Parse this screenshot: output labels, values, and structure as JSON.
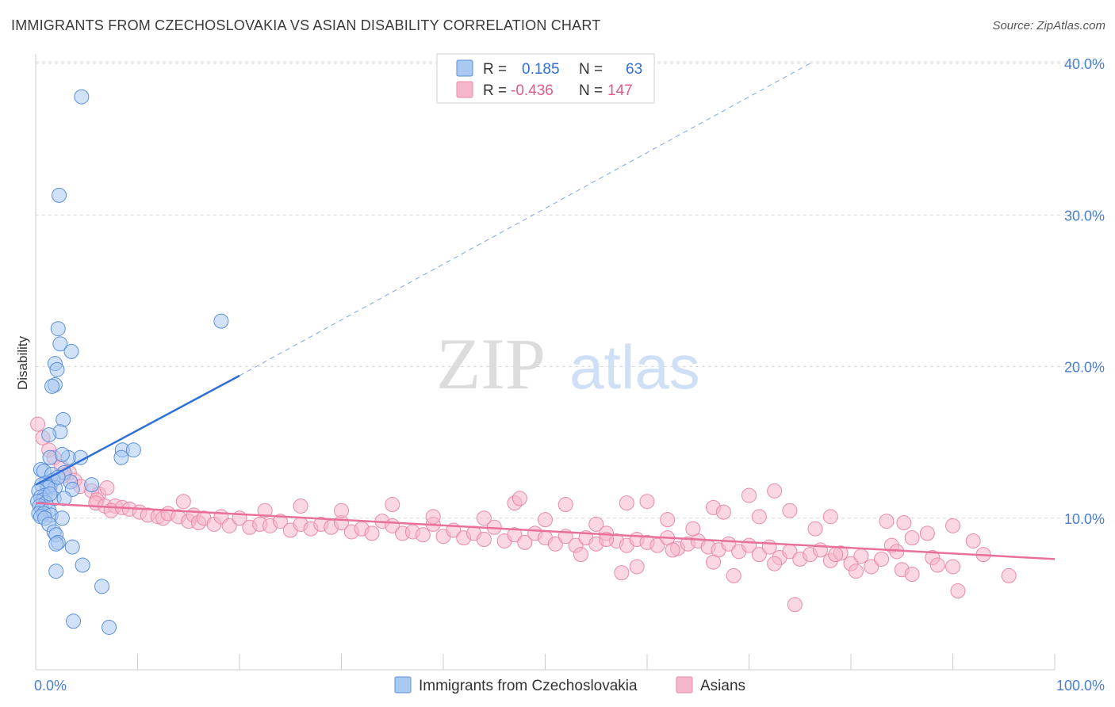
{
  "title": "IMMIGRANTS FROM CZECHOSLOVAKIA VS ASIAN DISABILITY CORRELATION CHART",
  "source": "Source: ZipAtlas.com",
  "watermark": {
    "zip": "ZIP",
    "atlas": "atlas"
  },
  "legend": {
    "r_label": "R =",
    "n_label": "N =",
    "entries": [
      {
        "r": "0.185",
        "n": "63",
        "color": "#a9c8f2"
      },
      {
        "r": "-0.436",
        "n": "147",
        "color": "#f6b6cb"
      }
    ]
  },
  "colors": {
    "blue_fill": "#a9c8f2",
    "blue_stroke": "#5b8fd8",
    "blue_line": "#2f6fd6",
    "pink_fill": "#f6b6cb",
    "pink_stroke": "#e88aa9",
    "pink_line": "#e8709a",
    "grid": "#d9d9d9",
    "axis_text": "#4a7fd0"
  },
  "chart_data": {
    "type": "scatter",
    "ylabel": "Disability",
    "xlim": [
      0,
      100
    ],
    "ylim": [
      0,
      40
    ],
    "x_tick_labels": [
      "0.0%",
      "100.0%"
    ],
    "y_tick_labels": [
      "10.0%",
      "20.0%",
      "30.0%",
      "40.0%"
    ],
    "y_ticks": [
      10,
      20,
      30,
      40
    ],
    "grid": true,
    "legend_position": "top-center",
    "series": [
      {
        "name": "Immigrants from Czechoslovakia",
        "color": "#a9c8f2",
        "trend": {
          "x0": 0,
          "y0": 12.2,
          "x1": 20,
          "y1": 19.4,
          "dashed_to_x": 76,
          "dashed_to_y": 40
        },
        "points": [
          [
            4.5,
            37.8
          ],
          [
            2.3,
            31.3
          ],
          [
            18.2,
            23.0
          ],
          [
            2.2,
            22.5
          ],
          [
            2.4,
            21.5
          ],
          [
            3.5,
            21.0
          ],
          [
            1.9,
            20.2
          ],
          [
            2.1,
            19.8
          ],
          [
            1.9,
            18.8
          ],
          [
            1.6,
            18.7
          ],
          [
            2.7,
            16.5
          ],
          [
            2.4,
            15.7
          ],
          [
            1.3,
            15.5
          ],
          [
            8.5,
            14.5
          ],
          [
            9.6,
            14.5
          ],
          [
            8.4,
            14.0
          ],
          [
            1.4,
            14.0
          ],
          [
            4.4,
            14.0
          ],
          [
            3.2,
            14.0
          ],
          [
            2.6,
            14.2
          ],
          [
            0.5,
            13.2
          ],
          [
            0.8,
            13.1
          ],
          [
            2.8,
            13.0
          ],
          [
            1.6,
            12.9
          ],
          [
            1.7,
            12.5
          ],
          [
            3.4,
            12.4
          ],
          [
            1.0,
            12.3
          ],
          [
            0.6,
            12.2
          ],
          [
            1.4,
            12.1
          ],
          [
            5.5,
            12.2
          ],
          [
            1.9,
            12.0
          ],
          [
            1.2,
            12.0
          ],
          [
            3.6,
            11.9
          ],
          [
            0.3,
            11.8
          ],
          [
            0.9,
            11.5
          ],
          [
            0.5,
            11.4
          ],
          [
            0.7,
            11.2
          ],
          [
            1.8,
            11.3
          ],
          [
            2.8,
            11.3
          ],
          [
            0.2,
            11.1
          ],
          [
            1.0,
            11.0
          ],
          [
            0.4,
            10.8
          ],
          [
            0.6,
            10.6
          ],
          [
            1.3,
            10.5
          ],
          [
            0.3,
            10.3
          ],
          [
            0.8,
            10.3
          ],
          [
            1.5,
            10.2
          ],
          [
            0.5,
            10.1
          ],
          [
            0.9,
            10.0
          ],
          [
            2.6,
            10.0
          ],
          [
            1.3,
            9.6
          ],
          [
            1.8,
            9.1
          ],
          [
            2.0,
            8.9
          ],
          [
            2.2,
            8.4
          ],
          [
            2.0,
            8.3
          ],
          [
            3.6,
            8.1
          ],
          [
            2.0,
            6.5
          ],
          [
            4.6,
            6.9
          ],
          [
            6.5,
            5.5
          ],
          [
            3.7,
            3.2
          ],
          [
            7.2,
            2.8
          ],
          [
            1.4,
            11.6
          ],
          [
            2.2,
            12.7
          ]
        ]
      },
      {
        "name": "Asians",
        "color": "#f6b6cb",
        "trend": {
          "x0": 0,
          "y0": 11.0,
          "x1": 100,
          "y1": 7.3
        },
        "points": [
          [
            0.2,
            16.2
          ],
          [
            0.7,
            15.3
          ],
          [
            1.3,
            14.5
          ],
          [
            1.8,
            14.0
          ],
          [
            2.5,
            13.4
          ],
          [
            3.3,
            13.0
          ],
          [
            2.7,
            12.8
          ],
          [
            3.8,
            12.5
          ],
          [
            4.4,
            12.1
          ],
          [
            5.5,
            11.8
          ],
          [
            6.2,
            11.6
          ],
          [
            7.0,
            12.0
          ],
          [
            6.0,
            11.2
          ],
          [
            5.9,
            11.0
          ],
          [
            6.8,
            10.8
          ],
          [
            7.8,
            10.8
          ],
          [
            7.4,
            10.5
          ],
          [
            8.5,
            10.7
          ],
          [
            9.2,
            10.6
          ],
          [
            10.2,
            10.4
          ],
          [
            11.0,
            10.2
          ],
          [
            12.0,
            10.1
          ],
          [
            12.5,
            10.0
          ],
          [
            13.0,
            10.3
          ],
          [
            14.0,
            10.1
          ],
          [
            15.0,
            9.8
          ],
          [
            15.5,
            10.2
          ],
          [
            16.0,
            9.7
          ],
          [
            16.5,
            10.0
          ],
          [
            17.5,
            9.6
          ],
          [
            18.2,
            10.1
          ],
          [
            19.0,
            9.5
          ],
          [
            20.0,
            10.0
          ],
          [
            21.0,
            9.4
          ],
          [
            22.0,
            9.6
          ],
          [
            23.0,
            9.5
          ],
          [
            24.0,
            9.8
          ],
          [
            25.0,
            9.2
          ],
          [
            26.0,
            9.6
          ],
          [
            27.0,
            9.3
          ],
          [
            28.0,
            9.6
          ],
          [
            29.0,
            9.4
          ],
          [
            30.0,
            9.7
          ],
          [
            31.0,
            9.1
          ],
          [
            32.0,
            9.3
          ],
          [
            33.0,
            9.0
          ],
          [
            34.0,
            9.8
          ],
          [
            35.0,
            9.5
          ],
          [
            36.0,
            9.0
          ],
          [
            37.0,
            9.1
          ],
          [
            38.0,
            8.9
          ],
          [
            39.0,
            9.6
          ],
          [
            40.0,
            8.8
          ],
          [
            41.0,
            9.2
          ],
          [
            42.0,
            8.7
          ],
          [
            43.0,
            9.0
          ],
          [
            44.0,
            8.6
          ],
          [
            45.0,
            9.4
          ],
          [
            46.0,
            8.5
          ],
          [
            47.0,
            8.9
          ],
          [
            48.0,
            8.4
          ],
          [
            49.0,
            9.0
          ],
          [
            50.0,
            8.7
          ],
          [
            51.0,
            8.3
          ],
          [
            52.0,
            8.8
          ],
          [
            53.0,
            8.2
          ],
          [
            54.0,
            8.7
          ],
          [
            55.0,
            8.3
          ],
          [
            56.0,
            9.0
          ],
          [
            57.0,
            8.5
          ],
          [
            58.0,
            8.2
          ],
          [
            59.0,
            8.6
          ],
          [
            60.0,
            8.4
          ],
          [
            61.0,
            8.2
          ],
          [
            62.0,
            8.7
          ],
          [
            63.0,
            8.0
          ],
          [
            64.0,
            8.3
          ],
          [
            65.0,
            8.5
          ],
          [
            66.0,
            8.1
          ],
          [
            67.0,
            7.9
          ],
          [
            68.0,
            8.3
          ],
          [
            69.0,
            7.8
          ],
          [
            70.0,
            8.2
          ],
          [
            71.0,
            7.6
          ],
          [
            72.0,
            8.1
          ],
          [
            73.0,
            7.4
          ],
          [
            74.0,
            7.8
          ],
          [
            75.0,
            7.3
          ],
          [
            76.0,
            7.6
          ],
          [
            77.0,
            7.9
          ],
          [
            78.0,
            7.2
          ],
          [
            79.0,
            7.7
          ],
          [
            80.0,
            7.0
          ],
          [
            81.0,
            7.5
          ],
          [
            82.0,
            6.8
          ],
          [
            83.0,
            7.3
          ],
          [
            84.0,
            8.2
          ],
          [
            85.0,
            6.6
          ],
          [
            86.0,
            6.3
          ],
          [
            88.0,
            7.4
          ],
          [
            90.0,
            6.8
          ],
          [
            93.0,
            7.6
          ],
          [
            76.5,
            9.3
          ],
          [
            85.2,
            9.7
          ],
          [
            72.5,
            11.8
          ],
          [
            70.0,
            11.5
          ],
          [
            66.5,
            10.7
          ],
          [
            60.0,
            11.1
          ],
          [
            58.0,
            11.0
          ],
          [
            52.0,
            10.9
          ],
          [
            47.0,
            11.0
          ],
          [
            35.0,
            10.9
          ],
          [
            30.0,
            10.5
          ],
          [
            22.5,
            10.5
          ],
          [
            14.5,
            11.1
          ],
          [
            26.0,
            10.8
          ],
          [
            39.0,
            10.1
          ],
          [
            44.0,
            10.0
          ],
          [
            50.0,
            9.9
          ],
          [
            55.0,
            9.6
          ],
          [
            62.0,
            9.9
          ],
          [
            64.5,
            9.3
          ],
          [
            67.5,
            10.4
          ],
          [
            71.0,
            10.1
          ],
          [
            74.0,
            10.5
          ],
          [
            78.0,
            10.1
          ],
          [
            83.5,
            9.8
          ],
          [
            86.0,
            8.7
          ],
          [
            87.5,
            9.0
          ],
          [
            90.0,
            9.5
          ],
          [
            66.5,
            7.1
          ],
          [
            72.5,
            7.0
          ],
          [
            78.5,
            7.6
          ],
          [
            80.5,
            6.5
          ],
          [
            84.5,
            7.8
          ],
          [
            88.5,
            6.9
          ],
          [
            90.5,
            5.2
          ],
          [
            95.5,
            6.2
          ],
          [
            62.5,
            7.9
          ],
          [
            57.5,
            6.4
          ],
          [
            59.0,
            6.8
          ],
          [
            68.5,
            6.2
          ],
          [
            74.5,
            4.3
          ],
          [
            92.0,
            8.5
          ],
          [
            47.5,
            11.3
          ],
          [
            56.0,
            8.6
          ],
          [
            53.5,
            7.6
          ]
        ]
      }
    ]
  },
  "bottom_legend": [
    {
      "label": "Immigrants from Czechoslovakia",
      "color": "#a9c8f2"
    },
    {
      "label": "Asians",
      "color": "#f6b6cb"
    }
  ]
}
